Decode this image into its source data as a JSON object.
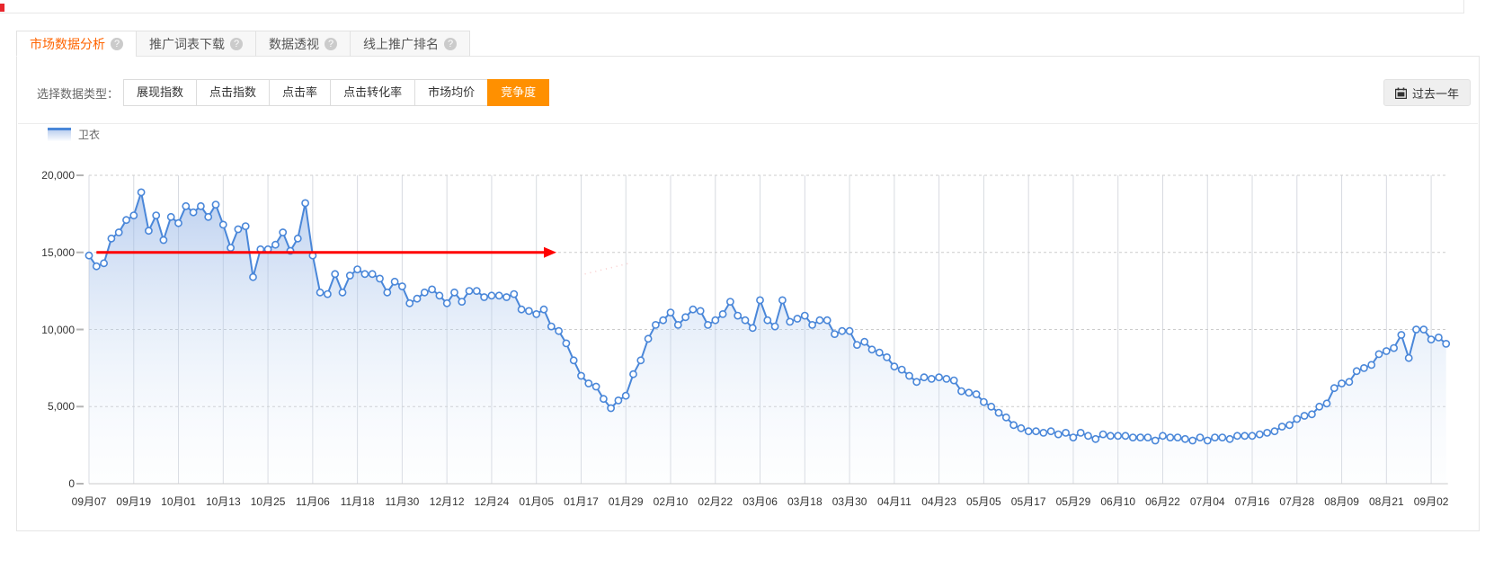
{
  "page": {
    "top_left_marker_color": "#e8262d"
  },
  "icons": {
    "help": "?"
  },
  "tabs": [
    {
      "label": "市场数据分析",
      "active": true
    },
    {
      "label": "推广词表下载",
      "active": false
    },
    {
      "label": "数据透视",
      "active": false
    },
    {
      "label": "线上推广排名",
      "active": false
    }
  ],
  "controls": {
    "label": "选择数据类型：",
    "options": [
      "展现指数",
      "点击指数",
      "点击率",
      "点击转化率",
      "市场均价",
      "竞争度"
    ],
    "selected_option": "竞争度",
    "selected_color": "#ff9000",
    "date_range_button": {
      "label": "过去一年"
    }
  },
  "legend": [
    {
      "label": "卫衣",
      "color": "#4a87d9"
    }
  ],
  "colors": {
    "active_tab_text": "#ff6400",
    "series_line": "#4a87d9",
    "area_top": "rgba(136,171,227,0.55)",
    "area_mid": "rgba(196,216,242,0.30)",
    "area_bottom": "rgba(238,244,252,0.10)",
    "grid_vertical": "#d7dae0",
    "grid_horizontal_dashed": "#cccccc",
    "axis_baseline": "#c8c8c8",
    "annotation_red": "#ff0000"
  },
  "chart_data": {
    "type": "line",
    "title": "",
    "xlabel": "",
    "ylabel": "",
    "grid": true,
    "legend_position": "top-left",
    "ylim": [
      0,
      20000
    ],
    "y_ticks": [
      "0",
      "5,000",
      "10,000",
      "15,000",
      "20,000"
    ],
    "y_tick_values": [
      0,
      5000,
      10000,
      15000,
      20000
    ],
    "x_tick_labels": [
      "09月07",
      "09月19",
      "10月01",
      "10月13",
      "10月25",
      "11月06",
      "11月18",
      "11月30",
      "12月12",
      "12月24",
      "01月05",
      "01月17",
      "01月29",
      "02月10",
      "02月22",
      "03月06",
      "03月18",
      "03月30",
      "04月11",
      "04月23",
      "05月05",
      "05月17",
      "05月29",
      "06月10",
      "06月22",
      "07月04",
      "07月16",
      "07月28",
      "08月09",
      "08月21",
      "09月02"
    ],
    "x_tick_interval_days": 12,
    "series": [
      {
        "name": "卫衣",
        "color": "#4a87d9",
        "marker": "circle",
        "area": true,
        "point_interval_days": 2,
        "values": [
          14800,
          14100,
          14300,
          15900,
          16300,
          17100,
          17400,
          18900,
          16400,
          17400,
          15800,
          17300,
          16900,
          18000,
          17600,
          18000,
          17300,
          18100,
          16800,
          15300,
          16500,
          16700,
          13400,
          15200,
          15200,
          15500,
          16300,
          15100,
          15900,
          18200,
          14800,
          12400,
          12300,
          13600,
          12400,
          13500,
          13900,
          13600,
          13600,
          13300,
          12400,
          13100,
          12800,
          11700,
          12000,
          12400,
          12600,
          12200,
          11700,
          12400,
          11800,
          12500,
          12500,
          12100,
          12200,
          12200,
          12100,
          12300,
          11300,
          11200,
          11000,
          11300,
          10200,
          9900,
          9100,
          8000,
          7000,
          6500,
          6300,
          5500,
          4900,
          5400,
          5700,
          7100,
          8000,
          9400,
          10300,
          10600,
          11100,
          10300,
          10800,
          11300,
          11200,
          10300,
          10600,
          11000,
          11800,
          10900,
          10600,
          10100,
          11900,
          10600,
          10200,
          11900,
          10500,
          10700,
          10900,
          10300,
          10600,
          10600,
          9700,
          9900,
          9900,
          9000,
          9200,
          8700,
          8500,
          8200,
          7600,
          7400,
          7000,
          6600,
          6900,
          6800,
          6900,
          6800,
          6700,
          6000,
          5900,
          5800,
          5300,
          5000,
          4600,
          4300,
          3800,
          3600,
          3400,
          3400,
          3300,
          3400,
          3200,
          3300,
          3000,
          3300,
          3100,
          2900,
          3200,
          3100,
          3100,
          3100,
          3000,
          3000,
          3000,
          2800,
          3100,
          3000,
          3000,
          2900,
          2800,
          3000,
          2800,
          3000,
          3000,
          2900,
          3100,
          3100,
          3100,
          3200,
          3300,
          3400,
          3700,
          3800,
          4200,
          4400,
          4500,
          5000,
          5200,
          6200,
          6500,
          6600,
          7300,
          7500,
          7700,
          8400,
          8600,
          8800,
          9650,
          8150,
          10000,
          10000,
          9350,
          9480,
          9070
        ]
      }
    ],
    "annotations": [
      {
        "type": "horizontal_arrow",
        "color": "#ff0000",
        "y_value": 15000,
        "start_day": 2,
        "end_day": 122
      },
      {
        "type": "faint_dotted_segment",
        "color": "rgba(244,150,150,0.5)",
        "from": {
          "day": 133,
          "value": 13600
        },
        "to": {
          "day": 145,
          "value": 14300
        }
      }
    ]
  }
}
